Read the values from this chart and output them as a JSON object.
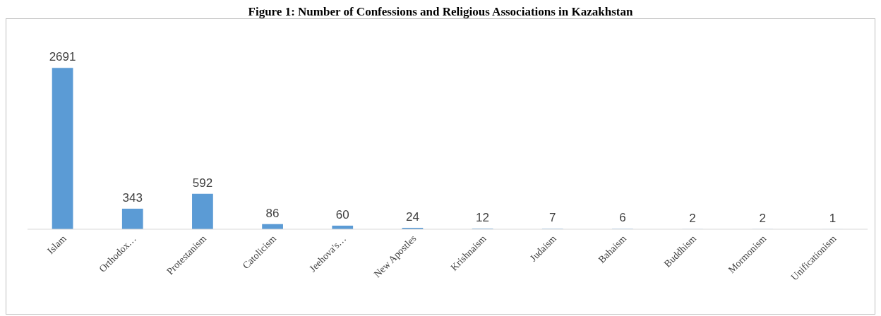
{
  "chart_data": {
    "type": "bar",
    "title": "Figure 1: Number of Confessions and Religious Associations in Kazakhstan",
    "categories": [
      "Islam",
      "Orthodox…",
      "Protestanism",
      "Catolicism",
      "Jeehova's…",
      "New Apostles",
      "Krishnaism",
      "Judaism",
      "Bahaism",
      "Buddhism",
      "Mormonism",
      "Unificationism"
    ],
    "values": [
      2691,
      343,
      592,
      86,
      60,
      24,
      12,
      7,
      6,
      2,
      2,
      1
    ],
    "color": "#5b9bd5",
    "tick_labels": "x",
    "data_labels": true
  }
}
